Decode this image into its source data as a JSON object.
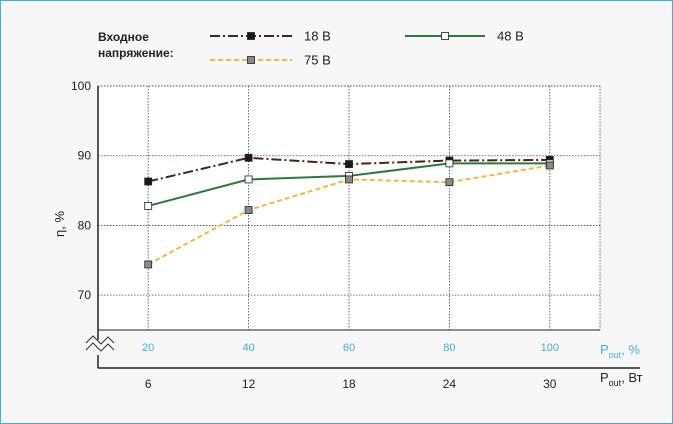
{
  "chart_data": {
    "type": "line",
    "title": "",
    "legend_title": "Входное напряжение:",
    "legend_placement": "top",
    "ylabel": "η, %",
    "ylim": [
      65,
      100
    ],
    "yticks": [
      70,
      80,
      90,
      100
    ],
    "grid": true,
    "x": [
      6,
      12,
      18,
      24,
      30
    ],
    "x_percent_ticks": [
      "20",
      "40",
      "60",
      "80",
      "100"
    ],
    "x_percent_label_main": "P",
    "x_percent_label_sub": "out",
    "x_percent_label_unit": ", %",
    "x_label_main": "P",
    "x_label_sub": "out",
    "x_label_unit": ", Вт",
    "x_tick_labels": [
      "6",
      "12",
      "18",
      "24",
      "30"
    ],
    "series": [
      {
        "name": "18 В",
        "values": [
          86.3,
          89.7,
          88.8,
          89.3,
          89.4
        ],
        "color": "#4a2318",
        "dash": "10,3,2,3",
        "marker": "#1a1a1a"
      },
      {
        "name": "48 В",
        "values": [
          82.8,
          86.6,
          87.1,
          88.9,
          88.9
        ],
        "color": "#2a7a3a",
        "dash": "",
        "marker": "#ffffff"
      },
      {
        "name": "75 В",
        "values": [
          74.4,
          82.2,
          86.6,
          86.2,
          88.6
        ],
        "color": "#f5b73b",
        "dash": "5,3",
        "marker": "#8a8a8a"
      }
    ]
  },
  "colors": {
    "accent": "#3ab3d4",
    "frame_bg": "#f7f7f7"
  }
}
